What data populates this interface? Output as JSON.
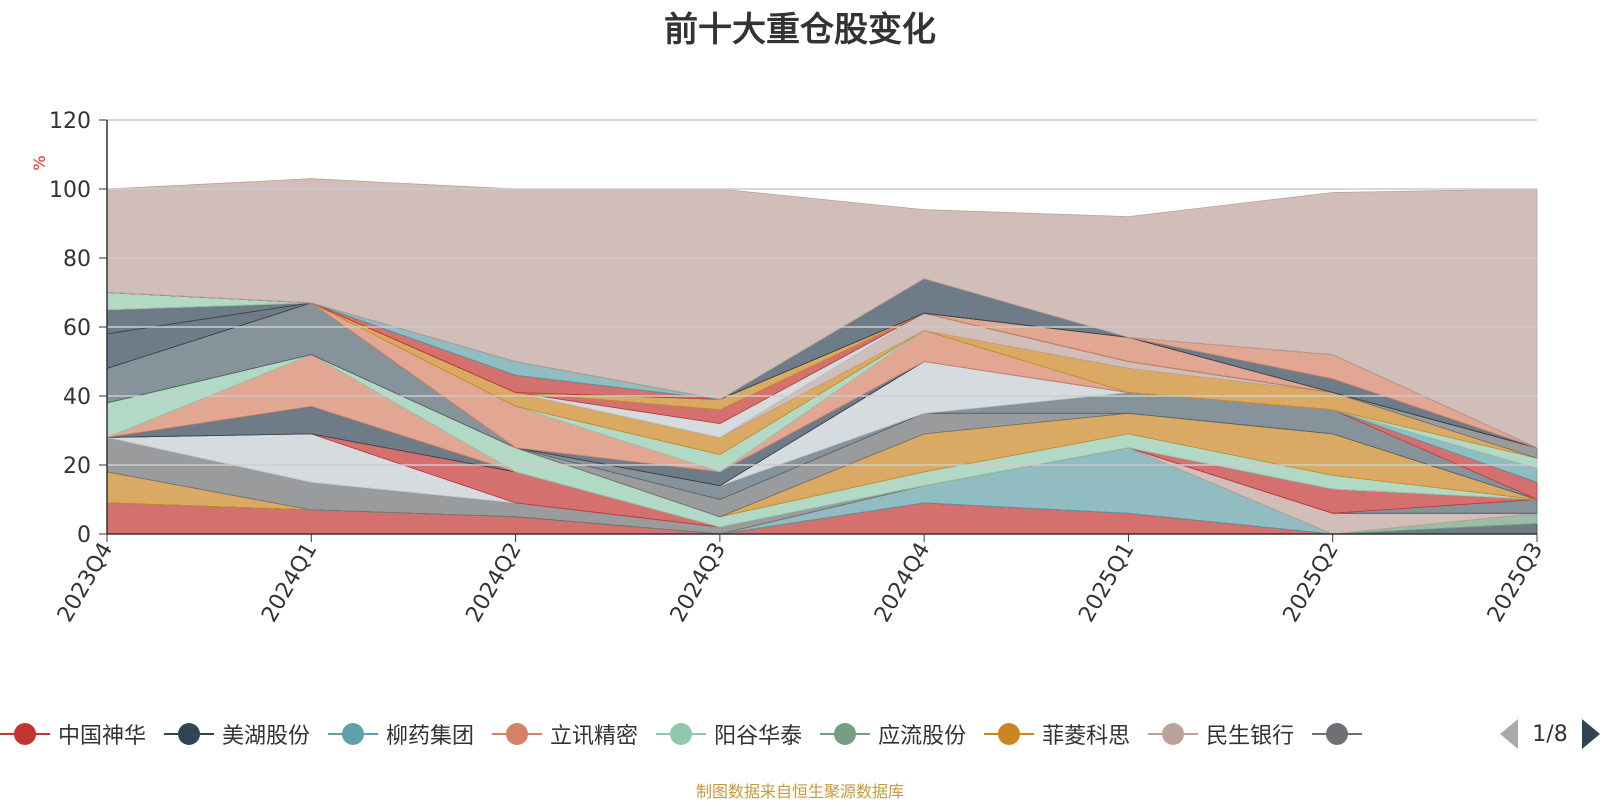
{
  "chart_data": {
    "type": "area",
    "stacked": true,
    "title": "前十大重仓股变化",
    "ylabel": "%",
    "ylim": [
      0,
      120
    ],
    "yticks": [
      0,
      20,
      40,
      60,
      80,
      100,
      120
    ],
    "grid": true,
    "legend_position": "bottom",
    "categories": [
      "2023Q4",
      "2024Q1",
      "2024Q2",
      "2024Q3",
      "2024Q4",
      "2025Q1",
      "2025Q2",
      "2025Q3"
    ],
    "series": [
      {
        "name": "中国神华",
        "color": "#c23531",
        "values": [
          9,
          7,
          5,
          0,
          9,
          6,
          0,
          0
        ]
      },
      {
        "name": "美湖股份",
        "color": "#2f4554",
        "values": [
          0,
          0,
          0,
          0,
          0,
          0,
          0,
          3
        ]
      },
      {
        "name": "柳药集团",
        "color": "#61a0a8",
        "values": [
          0,
          0,
          0,
          0,
          5,
          19,
          0,
          0
        ]
      },
      {
        "name": "立讯精密",
        "color": "#d48265",
        "values": [
          0,
          0,
          0,
          0,
          0,
          0,
          0,
          0
        ]
      },
      {
        "name": "阳谷华泰",
        "color": "#91c7ae",
        "values": [
          0,
          0,
          0,
          0,
          0,
          0,
          0,
          0
        ]
      },
      {
        "name": "应流股份",
        "color": "#749f83",
        "values": [
          0,
          0,
          0,
          0,
          0,
          0,
          0,
          3
        ]
      },
      {
        "name": "菲菱科思",
        "color": "#ca8622",
        "values": [
          9,
          0,
          0,
          0,
          0,
          0,
          0,
          0
        ]
      },
      {
        "name": "民生银行",
        "color": "#bda29a",
        "values": [
          0,
          0,
          0,
          0,
          0,
          0,
          6,
          0
        ]
      },
      {
        "name": "",
        "color": "#6e7074",
        "values": [
          10,
          8,
          4,
          2,
          0,
          0,
          0,
          0
        ]
      },
      {
        "name": "",
        "color": "#546570",
        "values": [
          0,
          0,
          0,
          0,
          0,
          0,
          0,
          4
        ]
      },
      {
        "name": "",
        "color": "#c4ccd3",
        "values": [
          0,
          14,
          0,
          0,
          0,
          0,
          0,
          0
        ]
      },
      {
        "name": "",
        "color": "#c23531",
        "values": [
          0,
          0,
          9,
          0,
          0,
          0,
          7,
          0
        ]
      },
      {
        "name": "",
        "color": "#2f4554",
        "values": [
          0,
          8,
          0,
          0,
          0,
          0,
          0,
          0
        ]
      },
      {
        "name": "",
        "color": "#61a0a8",
        "values": [
          0,
          0,
          0,
          0,
          0,
          0,
          0,
          0
        ]
      },
      {
        "name": "",
        "color": "#d48265",
        "values": [
          0,
          15,
          0,
          0,
          0,
          0,
          0,
          0
        ]
      },
      {
        "name": "",
        "color": "#91c7ae",
        "values": [
          10,
          0,
          7,
          3,
          4,
          4,
          4,
          0
        ]
      },
      {
        "name": "",
        "color": "#749f83",
        "values": [
          0,
          0,
          0,
          0,
          0,
          0,
          0,
          0
        ]
      },
      {
        "name": "",
        "color": "#ca8622",
        "values": [
          0,
          0,
          0,
          0,
          11,
          6,
          12,
          0
        ]
      },
      {
        "name": "",
        "color": "#bda29a",
        "values": [
          0,
          0,
          0,
          0,
          0,
          0,
          0,
          0
        ]
      },
      {
        "name": "",
        "color": "#6e7074",
        "values": [
          0,
          0,
          0,
          5,
          6,
          0,
          0,
          0
        ]
      },
      {
        "name": "",
        "color": "#546570",
        "values": [
          10,
          15,
          0,
          4,
          0,
          6,
          7,
          0
        ]
      },
      {
        "name": "",
        "color": "#c4ccd3",
        "values": [
          0,
          0,
          0,
          0,
          15,
          0,
          0,
          0
        ]
      },
      {
        "name": "",
        "color": "#c23531",
        "values": [
          0,
          0,
          0,
          0,
          0,
          0,
          0,
          5
        ]
      },
      {
        "name": "",
        "color": "#2f4554",
        "values": [
          10,
          0,
          0,
          4,
          0,
          0,
          0,
          0
        ]
      },
      {
        "name": "",
        "color": "#61a0a8",
        "values": [
          0,
          0,
          0,
          0,
          0,
          0,
          0,
          4
        ]
      },
      {
        "name": "",
        "color": "#d48265",
        "values": [
          0,
          0,
          12,
          0,
          9,
          0,
          0,
          0
        ]
      },
      {
        "name": "",
        "color": "#91c7ae",
        "values": [
          0,
          0,
          0,
          5,
          0,
          0,
          0,
          3
        ]
      },
      {
        "name": "",
        "color": "#749f83",
        "values": [
          0,
          0,
          0,
          0,
          0,
          0,
          0,
          0
        ]
      },
      {
        "name": "",
        "color": "#ca8622",
        "values": [
          0,
          0,
          4,
          5,
          0,
          7,
          5,
          0
        ]
      },
      {
        "name": "",
        "color": "#bda29a",
        "values": [
          0,
          0,
          0,
          0,
          5,
          2,
          0,
          0
        ]
      },
      {
        "name": "",
        "color": "#6e7074",
        "values": [
          0,
          0,
          0,
          0,
          0,
          0,
          0,
          3
        ]
      },
      {
        "name": "",
        "color": "#546570",
        "values": [
          0,
          0,
          0,
          0,
          0,
          0,
          0,
          0
        ]
      },
      {
        "name": "",
        "color": "#c4ccd3",
        "values": [
          0,
          0,
          0,
          4,
          0,
          0,
          0,
          0
        ]
      },
      {
        "name": "",
        "color": "#c23531",
        "values": [
          0,
          0,
          0,
          4,
          0,
          0,
          0,
          0
        ]
      },
      {
        "name": "",
        "color": "#2f4554",
        "values": [
          7,
          0,
          0,
          0,
          0,
          0,
          0,
          0
        ]
      },
      {
        "name": "",
        "color": "#61a0a8",
        "values": [
          0,
          0,
          0,
          0,
          0,
          0,
          0,
          0
        ]
      },
      {
        "name": "",
        "color": "#d48265",
        "values": [
          0,
          0,
          0,
          0,
          0,
          7,
          0,
          0
        ]
      },
      {
        "name": "",
        "color": "#91c7ae",
        "values": [
          5,
          0,
          0,
          0,
          0,
          0,
          0,
          0
        ]
      },
      {
        "name": "",
        "color": "#749f83",
        "values": [
          0,
          0,
          0,
          0,
          0,
          0,
          0,
          0
        ]
      },
      {
        "name": "",
        "color": "#ca8622",
        "values": [
          0,
          0,
          0,
          3,
          0,
          0,
          0,
          0
        ]
      },
      {
        "name": "",
        "color": "#bda29a",
        "values": [
          0,
          0,
          0,
          0,
          0,
          0,
          0,
          0
        ]
      },
      {
        "name": "",
        "color": "#6e7074",
        "values": [
          0,
          0,
          0,
          0,
          0,
          0,
          0,
          0
        ]
      },
      {
        "name": "",
        "color": "#546570",
        "values": [
          0,
          0,
          0,
          0,
          0,
          0,
          0,
          0
        ]
      },
      {
        "name": "",
        "color": "#c4ccd3",
        "values": [
          0,
          0,
          0,
          0,
          0,
          0,
          0,
          0
        ]
      },
      {
        "name": "",
        "color": "#c23531",
        "values": [
          0,
          0,
          5,
          0,
          0,
          0,
          0,
          0
        ]
      },
      {
        "name": "",
        "color": "#2f4554",
        "values": [
          0,
          0,
          0,
          0,
          0,
          0,
          4,
          0
        ]
      },
      {
        "name": "",
        "color": "#61a0a8",
        "values": [
          0,
          0,
          4,
          0,
          0,
          0,
          0,
          0
        ]
      },
      {
        "name": "",
        "color": "#d48265",
        "values": [
          0,
          0,
          0,
          0,
          0,
          0,
          7,
          0
        ]
      },
      {
        "name": "",
        "color": "#91c7ae",
        "values": [
          0,
          0,
          0,
          0,
          0,
          0,
          0,
          0
        ]
      },
      {
        "name": "",
        "color": "#749f83",
        "values": [
          0,
          0,
          0,
          0,
          0,
          0,
          0,
          0
        ]
      },
      {
        "name": "",
        "color": "#ca8622",
        "values": [
          0,
          0,
          0,
          0,
          0,
          0,
          0,
          0
        ]
      },
      {
        "name": "",
        "color": "#bda29a",
        "values": [
          0,
          0,
          0,
          0,
          0,
          0,
          0,
          0
        ]
      },
      {
        "name": "",
        "color": "#6e7074",
        "values": [
          0,
          0,
          0,
          0,
          0,
          0,
          0,
          0
        ]
      },
      {
        "name": "",
        "color": "#546570",
        "values": [
          0,
          0,
          0,
          0,
          0,
          0,
          0,
          0
        ]
      },
      {
        "name": "",
        "color": "#c4ccd3",
        "values": [
          0,
          0,
          0,
          0,
          0,
          0,
          0,
          0
        ]
      },
      {
        "name": "",
        "color": "#c23531",
        "values": [
          0,
          0,
          0,
          0,
          0,
          0,
          0,
          0
        ]
      },
      {
        "name": "",
        "color": "#2f4554",
        "values": [
          0,
          0,
          0,
          0,
          10,
          0,
          0,
          0
        ]
      },
      {
        "name": "",
        "color": "#61a0a8",
        "values": [
          0,
          0,
          0,
          0,
          0,
          0,
          0,
          0
        ]
      },
      {
        "name": "",
        "color": "#d48265",
        "values": [
          0,
          0,
          0,
          0,
          0,
          0,
          0,
          0
        ]
      },
      {
        "name": "",
        "color": "#91c7ae",
        "values": [
          0,
          0,
          0,
          0,
          0,
          0,
          0,
          0
        ]
      },
      {
        "name": "",
        "color": "#749f83",
        "values": [
          0,
          0,
          0,
          0,
          0,
          0,
          0,
          0
        ]
      },
      {
        "name": "",
        "color": "#ca8622",
        "values": [
          0,
          0,
          0,
          0,
          0,
          0,
          0,
          0
        ]
      },
      {
        "name": "",
        "color": "#bda29a",
        "values": [
          0,
          0,
          0,
          0,
          0,
          0,
          0,
          0
        ]
      },
      {
        "name": "",
        "color": "#6e7074",
        "values": [
          0,
          0,
          0,
          0,
          0,
          0,
          0,
          0
        ]
      },
      {
        "name": "",
        "color": "#546570",
        "values": [
          0,
          0,
          0,
          0,
          0,
          0,
          0,
          0
        ]
      },
      {
        "name": "",
        "color": "#c4ccd3",
        "values": [
          0,
          0,
          0,
          0,
          0,
          0,
          0,
          0
        ]
      },
      {
        "name": "",
        "color": "#c23531",
        "values": [
          0,
          0,
          0,
          0,
          0,
          0,
          0,
          0
        ]
      },
      {
        "name": "",
        "color": "#2f4554",
        "values": [
          0,
          0,
          0,
          0,
          0,
          0,
          0,
          0
        ]
      },
      {
        "name": "",
        "color": "#61a0a8",
        "values": [
          0,
          0,
          0,
          0,
          0,
          0,
          0,
          0
        ]
      },
      {
        "name": "",
        "color": "#d48265",
        "values": [
          0,
          0,
          0,
          0,
          0,
          0,
          0,
          0
        ]
      },
      {
        "name": "",
        "color": "#91c7ae",
        "values": [
          0,
          0,
          0,
          0,
          0,
          0,
          0,
          0
        ]
      },
      {
        "name": "",
        "color": "#749f83",
        "values": [
          0,
          0,
          0,
          0,
          0,
          0,
          0,
          0
        ]
      },
      {
        "name": "",
        "color": "#ca8622",
        "values": [
          0,
          0,
          0,
          0,
          0,
          0,
          0,
          0
        ]
      },
      {
        "name": "",
        "color": "#bda29a",
        "values": [
          0,
          0,
          0,
          0,
          0,
          0,
          0,
          0
        ]
      },
      {
        "name": "",
        "color": "#6e7074",
        "values": [
          0,
          0,
          0,
          0,
          0,
          0,
          0,
          0
        ]
      },
      {
        "name": "",
        "color": "#546570",
        "values": [
          0,
          0,
          0,
          0,
          0,
          0,
          0,
          0
        ]
      },
      {
        "name": "",
        "color": "#c4ccd3",
        "values": [
          0,
          0,
          0,
          0,
          0,
          0,
          0,
          0
        ]
      },
      {
        "name": "",
        "color": "#bda29a",
        "values": [
          30,
          36,
          50,
          61,
          20,
          35,
          47,
          75
        ]
      }
    ]
  },
  "legend": {
    "visible_items": [
      "中国神华",
      "美湖股份",
      "柳药集团",
      "立讯精密",
      "阳谷华泰",
      "应流股份",
      "菲菱科思",
      "民生银行",
      ""
    ],
    "page_text": "1/8"
  },
  "footer": {
    "source": "制图数据来自恒生聚源数据库"
  },
  "colors": {
    "title": "#333333",
    "axis": "#333333",
    "grid": "#cccccc",
    "ylabel": "#e8262a",
    "source": "#c79a3b"
  }
}
